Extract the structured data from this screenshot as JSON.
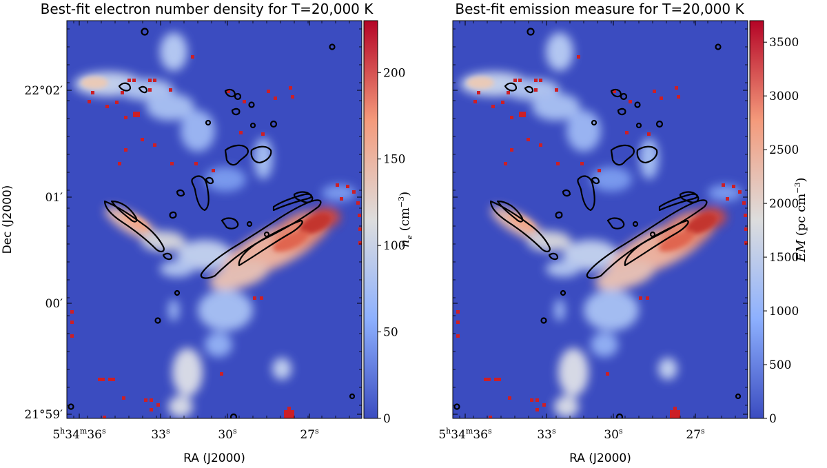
{
  "chart_data": [
    {
      "type": "heatmap",
      "title": "Best-fit electron number density for T=20,000 K",
      "xlabel": "RA (J2000)",
      "ylabel": "Dec (J2000)",
      "x_ticks": [
        {
          "h": "5",
          "m": "34",
          "s": "36"
        },
        {
          "s": "33"
        },
        {
          "s": "30"
        },
        {
          "s": "27"
        }
      ],
      "y_ticks": [
        "22°02′",
        "01′",
        "00′",
        "21°59′"
      ],
      "colorbar": {
        "label_var": "n",
        "label_sub": "e",
        "label_unit": "(cm",
        "label_exp": "−3",
        "label_close": ")",
        "range": [
          0,
          230
        ],
        "ticks": [
          "0",
          "50",
          "100",
          "150",
          "200"
        ],
        "colormap": "coolwarm"
      },
      "peak_value": 230,
      "background_value": 0
    },
    {
      "type": "heatmap",
      "title": "Best-fit emission measure for T=20,000 K",
      "xlabel": "RA (J2000)",
      "ylabel": "",
      "x_ticks": [
        {
          "h": "5",
          "m": "34",
          "s": "36"
        },
        {
          "s": "33"
        },
        {
          "s": "30"
        },
        {
          "s": "27"
        }
      ],
      "y_ticks": [],
      "colorbar": {
        "label_var": "EM",
        "label_sub": "",
        "label_unit": "(pc cm",
        "label_exp": "−3",
        "label_close": ")",
        "range": [
          0,
          3700
        ],
        "ticks": [
          "0",
          "500",
          "1000",
          "1500",
          "2000",
          "2500",
          "3000",
          "3500"
        ],
        "colormap": "coolwarm"
      },
      "peak_value": 3700,
      "background_value": 0
    }
  ],
  "colors": {
    "background": "#3b4cc0",
    "low": "#3b4cc0",
    "mid": "#dddddd",
    "high": "#b40426",
    "contour": "#000000",
    "masked_pixel": "#cc1f26"
  }
}
